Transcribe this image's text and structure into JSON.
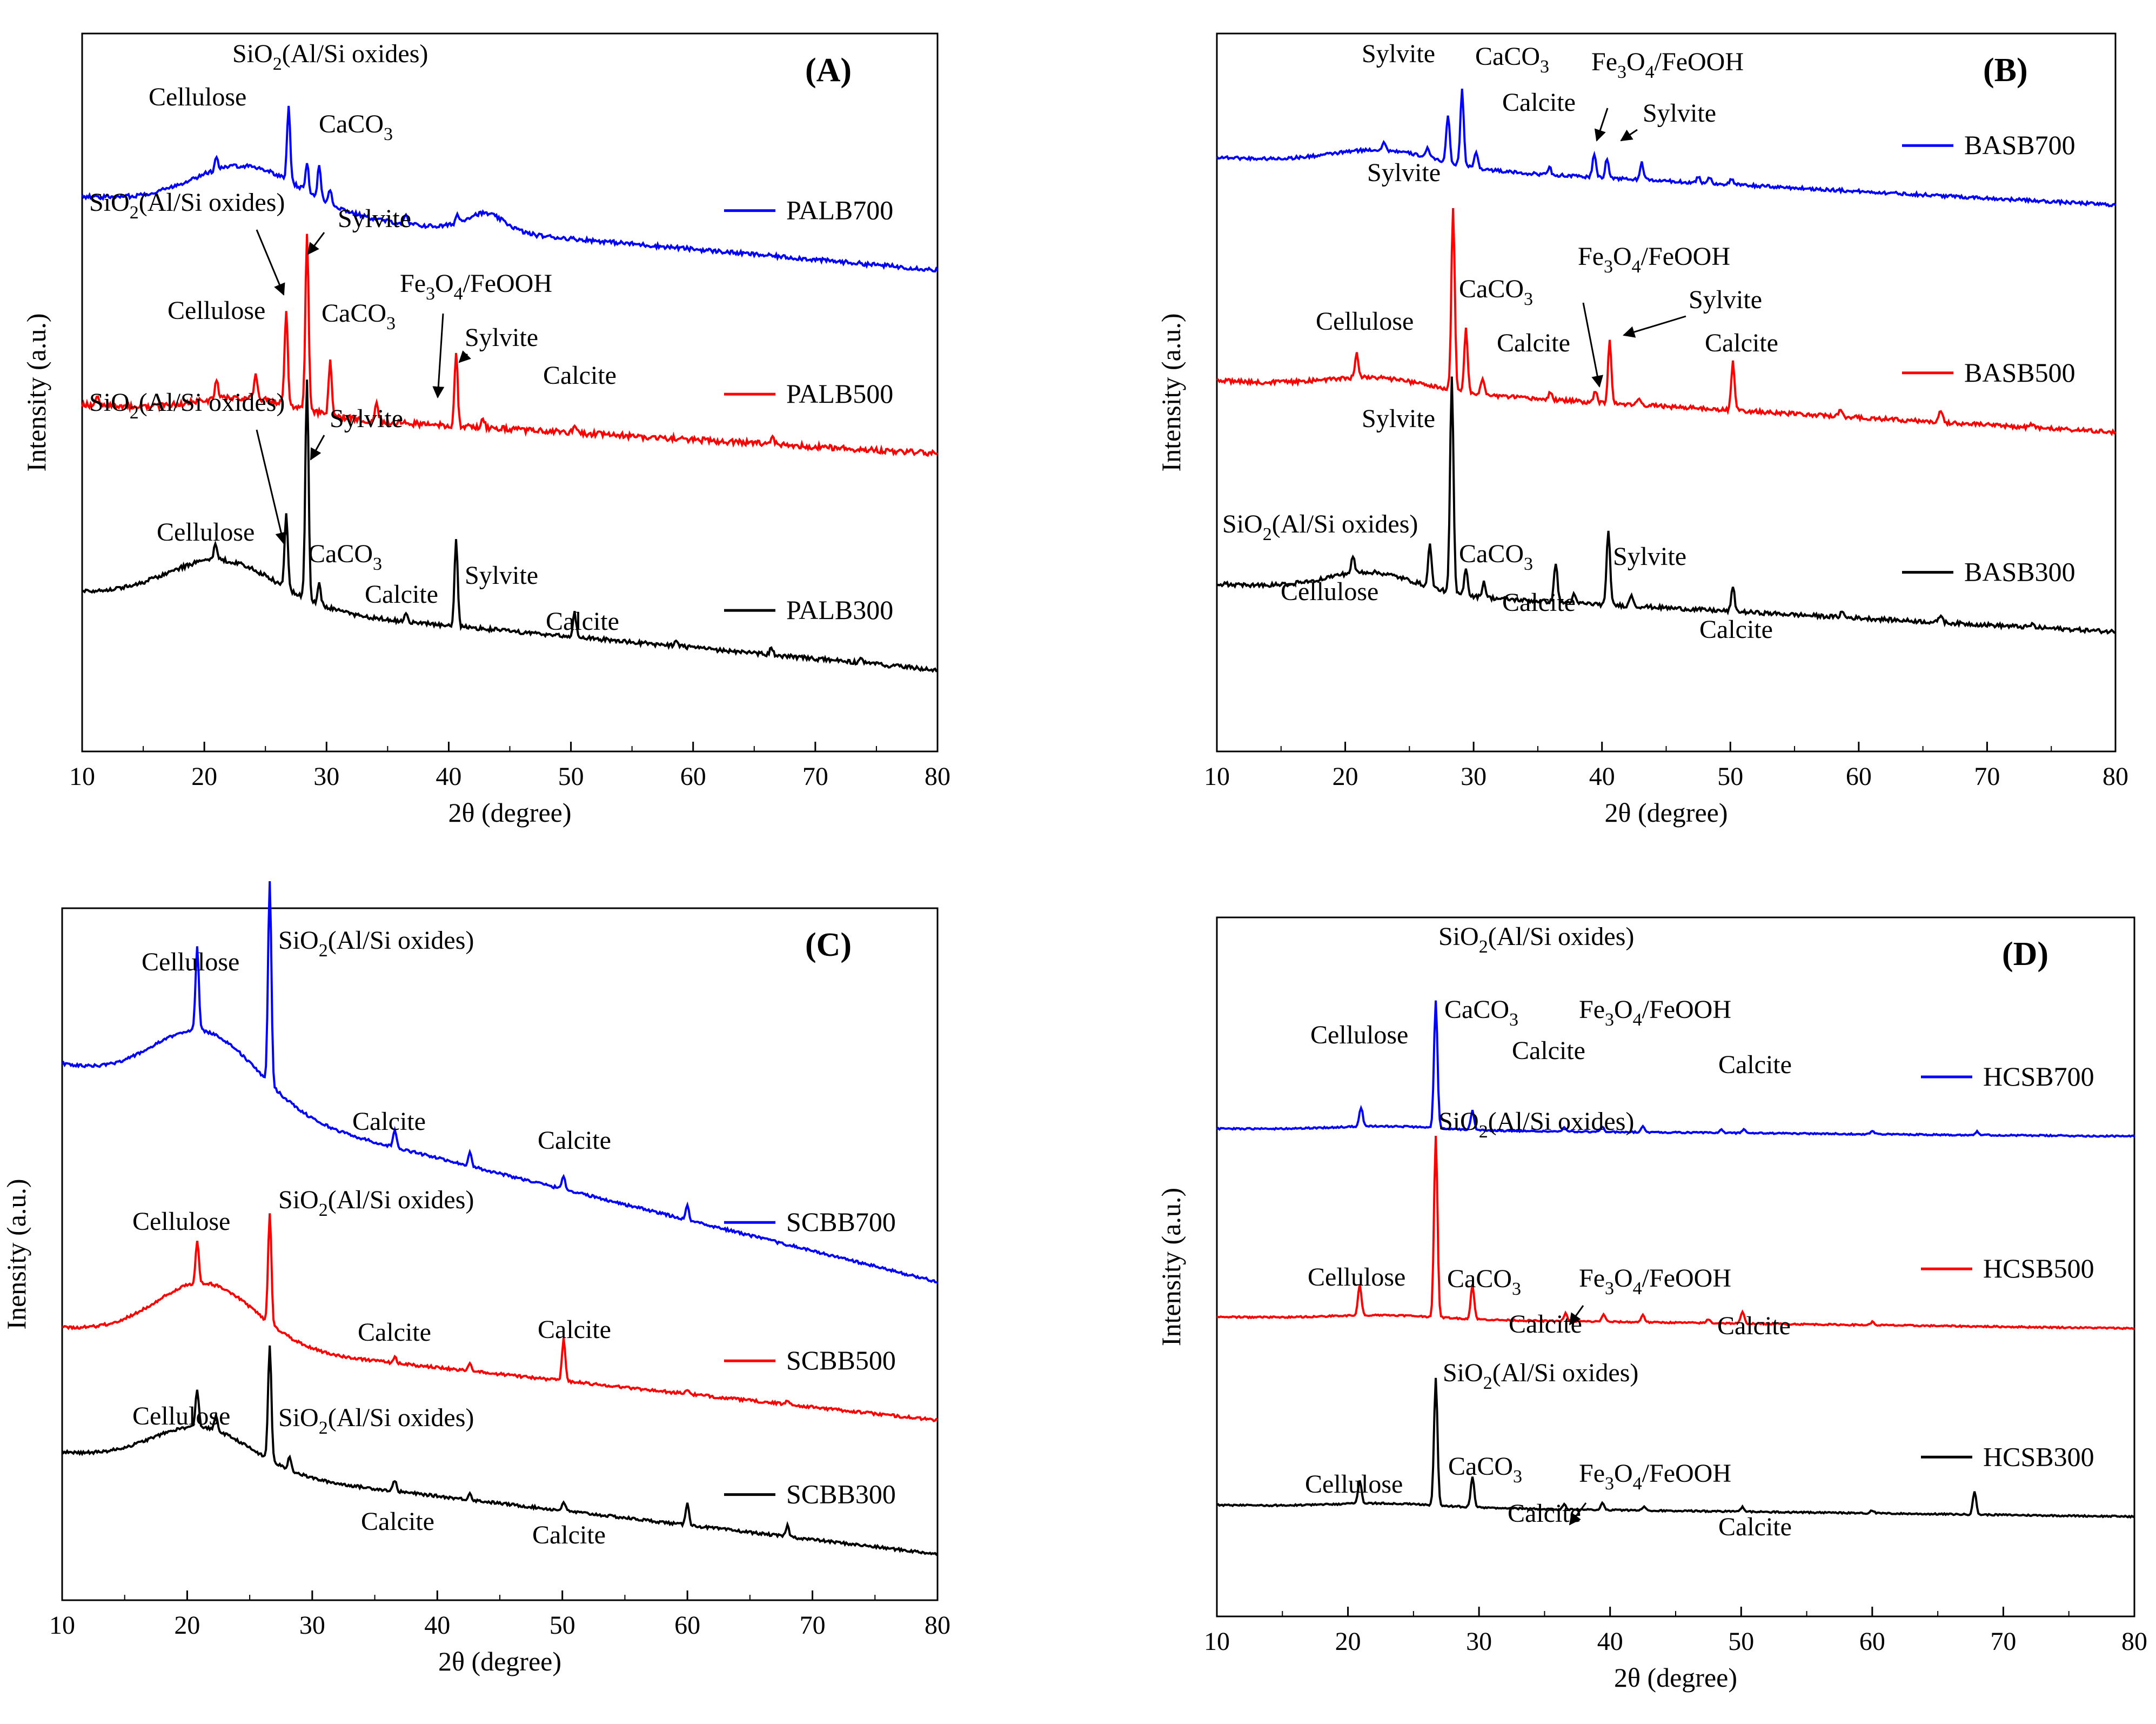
{
  "chart_data": [
    {
      "panel": "(A)",
      "type": "line",
      "xlabel": "2θ (degree)",
      "ylabel": "Intensity (a.u.)",
      "xlim": [
        10,
        80
      ],
      "xticks": [
        10,
        20,
        30,
        40,
        50,
        60,
        70,
        80
      ],
      "y_ticks_shown": false,
      "legend_position": "right",
      "series": [
        {
          "name": "PALB700",
          "color": "#0000ff",
          "baseline": 6.0,
          "end": 5.1,
          "humps": [
            [
              23.5,
              0.55,
              4.5
            ],
            [
              43,
              0.22,
              1.6
            ]
          ],
          "peaks": [
            [
              21,
              0.15
            ],
            [
              26.9,
              0.9
            ],
            [
              28.4,
              0.35
            ],
            [
              29.4,
              0.4
            ],
            [
              30.3,
              0.18
            ],
            [
              36.5,
              0.1
            ],
            [
              40.7,
              0.1
            ]
          ],
          "noise": 0.05
        },
        {
          "name": "PALB500",
          "color": "#ff0000",
          "baseline": 3.45,
          "end": 2.85,
          "humps": [
            [
              23.5,
              0.2,
              4.0
            ]
          ],
          "peaks": [
            [
              11.2,
              0.12
            ],
            [
              21,
              0.25
            ],
            [
              24.2,
              0.28
            ],
            [
              26.7,
              1.15
            ],
            [
              28.4,
              2.15
            ],
            [
              30.3,
              0.65
            ],
            [
              34.1,
              0.25
            ],
            [
              40.6,
              0.9
            ],
            [
              42.8,
              0.12
            ],
            [
              50.3,
              0.12
            ],
            [
              66.5,
              0.08
            ]
          ],
          "noise": 0.07
        },
        {
          "name": "PALB300",
          "color": "#000000",
          "baseline": 1.15,
          "end": 0.2,
          "humps": [
            [
              21.5,
              0.55,
              4.5
            ]
          ],
          "peaks": [
            [
              20.9,
              0.2
            ],
            [
              26.7,
              0.9
            ],
            [
              28.4,
              2.7
            ],
            [
              29.4,
              0.25
            ],
            [
              36.5,
              0.12
            ],
            [
              40.6,
              1.05
            ],
            [
              50.3,
              0.3
            ],
            [
              58.6,
              0.08
            ],
            [
              66.4,
              0.1
            ],
            [
              73.7,
              0.05
            ]
          ],
          "noise": 0.05
        }
      ],
      "annotations": [
        "SiO2(Al/Si oxides)",
        "Cellulose",
        "CaCO3",
        "SiO2(Al/Si oxides)",
        "Sylvite",
        "Cellulose",
        "Fe3O4/FeOOH",
        "CaCO3",
        "Sylvite",
        "Calcite",
        "SiO2(Al/Si oxides)",
        "Sylvite",
        "Cellulose",
        "CaCO3",
        "Calcite",
        "Sylvite",
        "Calcite"
      ]
    },
    {
      "panel": "(B)",
      "type": "line",
      "xlabel": "2θ (degree)",
      "ylabel": "Intensity (a.u.)",
      "xlim": [
        10,
        80
      ],
      "xticks": [
        10,
        20,
        30,
        40,
        50,
        60,
        70,
        80
      ],
      "y_ticks_shown": false,
      "legend_position": "right",
      "series": [
        {
          "name": "BASB700",
          "color": "#0000ff",
          "baseline": 5.95,
          "end": 5.35,
          "humps": [
            [
              23,
              0.2,
              4.0
            ]
          ],
          "peaks": [
            [
              23,
              0.1
            ],
            [
              26.4,
              0.12
            ],
            [
              28.0,
              0.6
            ],
            [
              29.1,
              0.95
            ],
            [
              30.2,
              0.2
            ],
            [
              35.9,
              0.1
            ],
            [
              39.4,
              0.3
            ],
            [
              40.4,
              0.25
            ],
            [
              43.1,
              0.22
            ],
            [
              47.5,
              0.08
            ],
            [
              48.4,
              0.08
            ],
            [
              50.1,
              0.07
            ]
          ],
          "noise": 0.04
        },
        {
          "name": "BASB500",
          "color": "#ff0000",
          "baseline": 3.15,
          "end": 2.5,
          "humps": [
            [
              22.5,
              0.15,
              4.0
            ]
          ],
          "peaks": [
            [
              20.9,
              0.3
            ],
            [
              28.4,
              2.3
            ],
            [
              29.4,
              0.8
            ],
            [
              30.7,
              0.2
            ],
            [
              36.0,
              0.1
            ],
            [
              39.5,
              0.15
            ],
            [
              40.6,
              0.8
            ],
            [
              42.9,
              0.1
            ],
            [
              50.2,
              0.6
            ],
            [
              58.6,
              0.08
            ],
            [
              66.4,
              0.15
            ],
            [
              73.5,
              0.05
            ]
          ],
          "noise": 0.05
        },
        {
          "name": "BASB300",
          "color": "#000000",
          "baseline": 0.6,
          "end": 0.0,
          "humps": [
            [
              22,
              0.25,
              3.5
            ]
          ],
          "peaks": [
            [
              20.6,
              0.2
            ],
            [
              26.6,
              0.55
            ],
            [
              28.3,
              2.7
            ],
            [
              29.4,
              0.35
            ],
            [
              30.8,
              0.2
            ],
            [
              36.4,
              0.5
            ],
            [
              37.8,
              0.1
            ],
            [
              40.5,
              0.95
            ],
            [
              42.3,
              0.15
            ],
            [
              50.2,
              0.3
            ],
            [
              58.7,
              0.07
            ],
            [
              66.4,
              0.1
            ],
            [
              73.5,
              0.04
            ]
          ],
          "noise": 0.05
        }
      ],
      "annotations": [
        "Sylvite",
        "CaCO3",
        "Fe3O4/FeOOH",
        "Calcite",
        "Sylvite",
        "Sylvite",
        "Fe3O4/FeOOH",
        "CaCO3",
        "Sylvite",
        "Cellulose",
        "Calcite",
        "Calcite",
        "Sylvite",
        "SiO2(Al/Si oxides)",
        "CaCO3",
        "Sylvite",
        "Cellulose",
        "Calcite",
        "Calcite"
      ]
    },
    {
      "panel": "(C)",
      "type": "line",
      "xlabel": "2θ (degree)",
      "ylabel": "Inensity (a.u.)",
      "xlim": [
        10,
        80
      ],
      "xticks": [
        10,
        20,
        30,
        40,
        50,
        60,
        70,
        80
      ],
      "y_ticks_shown": false,
      "legend_position": "right",
      "series": [
        {
          "name": "SCBB700",
          "color": "#0000ff",
          "baseline": 5.3,
          "end": 2.95,
          "humps": [
            [
              21.5,
              0.75,
              4.2
            ]
          ],
          "peaks": [
            [
              20.8,
              0.9
            ],
            [
              26.6,
              2.2
            ],
            [
              36.6,
              0.2
            ],
            [
              42.6,
              0.15
            ],
            [
              50.1,
              0.15
            ],
            [
              60.0,
              0.15
            ]
          ],
          "noise": 0.03
        },
        {
          "name": "SCBB500",
          "color": "#ff0000",
          "baseline": 2.45,
          "end": 1.45,
          "humps": [
            [
              21.5,
              0.65,
              4.0
            ]
          ],
          "peaks": [
            [
              20.8,
              0.45
            ],
            [
              26.6,
              1.2
            ],
            [
              36.6,
              0.07
            ],
            [
              42.6,
              0.07
            ],
            [
              50.1,
              0.45
            ],
            [
              60.0,
              0.05
            ],
            [
              68.0,
              0.05
            ]
          ],
          "noise": 0.03
        },
        {
          "name": "SCBB300",
          "color": "#000000",
          "baseline": 1.1,
          "end": 0.0,
          "humps": [
            [
              21.2,
              0.45,
              4.0
            ]
          ],
          "peaks": [
            [
              20.8,
              0.4
            ],
            [
              22.3,
              0.15
            ],
            [
              26.6,
              1.25
            ],
            [
              28.2,
              0.15
            ],
            [
              36.6,
              0.12
            ],
            [
              42.6,
              0.07
            ],
            [
              50.1,
              0.1
            ],
            [
              60.0,
              0.25
            ],
            [
              68.0,
              0.12
            ]
          ],
          "noise": 0.03
        }
      ],
      "annotations": [
        "Cellulose",
        "SiO2(Al/Si oxides)",
        "Calcite",
        "Calcite",
        "Cellulose",
        "SiO2(Al/Si oxides)",
        "Calcite",
        "Calcite",
        "Cellulose",
        "SiO2(Al/Si oxides)",
        "Calcite",
        "Calcite"
      ]
    },
    {
      "panel": "(D)",
      "type": "line",
      "xlabel": "2θ (degree)",
      "ylabel": "Intensity (a.u.)",
      "xlim": [
        10,
        80
      ],
      "xticks": [
        10,
        20,
        30,
        40,
        50,
        60,
        70,
        80
      ],
      "y_ticks_shown": false,
      "legend_position": "right",
      "series": [
        {
          "name": "HCSB700",
          "color": "#0000ff",
          "baseline": 5.25,
          "end": 5.15,
          "humps": [
            [
              23,
              0.05,
              4.0
            ]
          ],
          "peaks": [
            [
              21.0,
              0.25
            ],
            [
              26.7,
              1.65
            ],
            [
              29.5,
              0.25
            ],
            [
              36.5,
              0.05
            ],
            [
              39.4,
              0.07
            ],
            [
              42.5,
              0.07
            ],
            [
              48.5,
              0.04
            ],
            [
              50.2,
              0.05
            ],
            [
              60.0,
              0.04
            ],
            [
              68.0,
              0.05
            ]
          ],
          "noise": 0.02
        },
        {
          "name": "HCSB500",
          "color": "#ff0000",
          "baseline": 2.8,
          "end": 2.65,
          "humps": [
            [
              23,
              0.05,
              4.0
            ]
          ],
          "peaks": [
            [
              20.9,
              0.4
            ],
            [
              26.7,
              2.35
            ],
            [
              29.5,
              0.45
            ],
            [
              36.6,
              0.1
            ],
            [
              39.5,
              0.1
            ],
            [
              42.5,
              0.1
            ],
            [
              47.5,
              0.05
            ],
            [
              50.1,
              0.15
            ],
            [
              60.0,
              0.04
            ]
          ],
          "noise": 0.02
        },
        {
          "name": "HCSB300",
          "color": "#000000",
          "baseline": 0.35,
          "end": 0.2,
          "humps": [
            [
              23,
              0.05,
              4.0
            ]
          ],
          "peaks": [
            [
              20.9,
              0.3
            ],
            [
              26.7,
              1.65
            ],
            [
              29.5,
              0.4
            ],
            [
              36.5,
              0.07
            ],
            [
              39.4,
              0.09
            ],
            [
              42.6,
              0.05
            ],
            [
              50.1,
              0.06
            ],
            [
              60.0,
              0.04
            ],
            [
              67.8,
              0.3
            ]
          ],
          "noise": 0.02
        }
      ],
      "annotations": [
        "SiO2(Al/Si oxides)",
        "Cellulose",
        "CaCO3",
        "Fe3O4/FeOOH",
        "Calcite",
        "Calcite",
        "SiO2(Al/Si oxides)",
        "Cellulose",
        "CaCO3",
        "Fe3O4/FeOOH",
        "Calcite",
        "Calcite",
        "SiO2(Al/Si oxides)",
        "CaCO3",
        "Cellulose",
        "Fe3O4/FeOOH",
        "Calcite",
        "Calcite"
      ]
    }
  ]
}
